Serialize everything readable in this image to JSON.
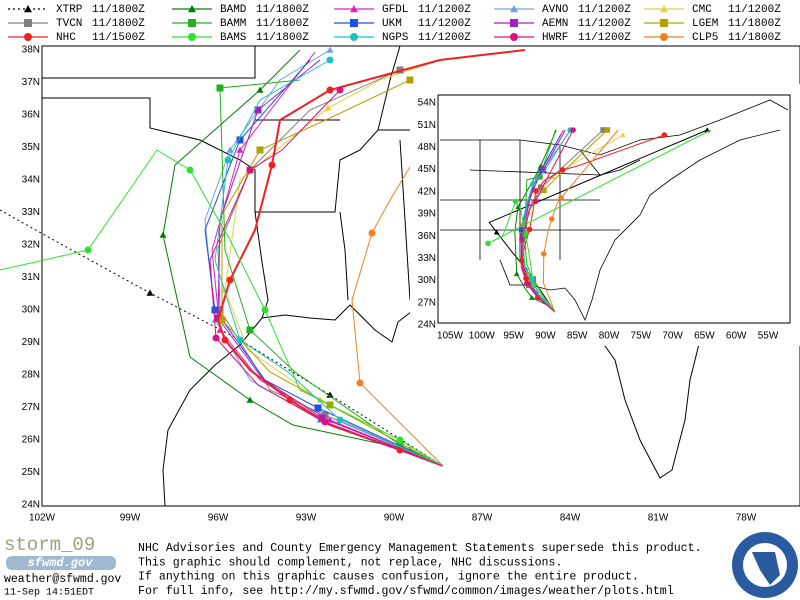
{
  "legend": [
    {
      "name": "XTRP",
      "time": "11/1800Z",
      "color": "#000000",
      "marker": "triangle",
      "dash": true
    },
    {
      "name": "BAMD",
      "time": "11/1800Z",
      "color": "#008000",
      "marker": "triangle"
    },
    {
      "name": "GFDL",
      "time": "11/1200Z",
      "color": "#e020c0",
      "marker": "triangle"
    },
    {
      "name": "AVNO",
      "time": "11/1200Z",
      "color": "#70a0e0",
      "marker": "triangle"
    },
    {
      "name": "CMC",
      "time": "11/1200Z",
      "color": "#e8d040",
      "marker": "triangle"
    },
    {
      "name": "TVCN",
      "time": "11/1800Z",
      "color": "#808080",
      "marker": "square"
    },
    {
      "name": "BAMM",
      "time": "11/1800Z",
      "color": "#20b020",
      "marker": "square"
    },
    {
      "name": "UKM",
      "time": "11/1200Z",
      "color": "#2050e0",
      "marker": "square"
    },
    {
      "name": "AEMN",
      "time": "11/1200Z",
      "color": "#a020c0",
      "marker": "square"
    },
    {
      "name": "LGEM",
      "time": "11/1800Z",
      "color": "#b0a000",
      "marker": "square"
    },
    {
      "name": "NHC",
      "time": "11/1500Z",
      "color": "#f02020",
      "marker": "circle"
    },
    {
      "name": "BAMS",
      "time": "11/1800Z",
      "color": "#30e030",
      "marker": "circle"
    },
    {
      "name": "NGPS",
      "time": "11/1200Z",
      "color": "#20c0c0",
      "marker": "circle"
    },
    {
      "name": "HWRF",
      "time": "11/1200Z",
      "color": "#e01080",
      "marker": "circle"
    },
    {
      "name": "CLP5",
      "time": "11/1800Z",
      "color": "#f08020",
      "marker": "circle"
    }
  ],
  "main_map": {
    "lat_labels": [
      "38N",
      "37N",
      "36N",
      "35N",
      "34N",
      "33N",
      "32N",
      "31N",
      "30N",
      "29N",
      "28N",
      "27N",
      "26N",
      "25N",
      "24N"
    ],
    "lon_labels": [
      "102W",
      "99W",
      "96W",
      "93W",
      "90W",
      "87W",
      "84W",
      "81W",
      "78W"
    ]
  },
  "inset_map": {
    "lat_labels": [
      "54N",
      "51N",
      "48N",
      "45N",
      "42N",
      "39N",
      "36N",
      "33N",
      "30N",
      "27N",
      "24N"
    ],
    "lon_labels": [
      "105W",
      "100W",
      "95W",
      "90W",
      "85W",
      "80W",
      "75W",
      "70W",
      "65W",
      "60W",
      "55W"
    ]
  },
  "footer": {
    "storm": "storm_09",
    "logo_text": "sfwmd.gov",
    "email": "weather@sfwmd.gov",
    "timestamp": "11-Sep 14:51EDT",
    "lines": [
      "NHC Advisories and County Emergency Management Statements supersede this product.",
      "This graphic should complement, not replace, NHC discussions.",
      "If anything on this graphic causes confusion, ignore the entire product.",
      "For full info, see  http://my.sfwmd.gov/sfwmd/common/images/weather/plots.html"
    ]
  }
}
